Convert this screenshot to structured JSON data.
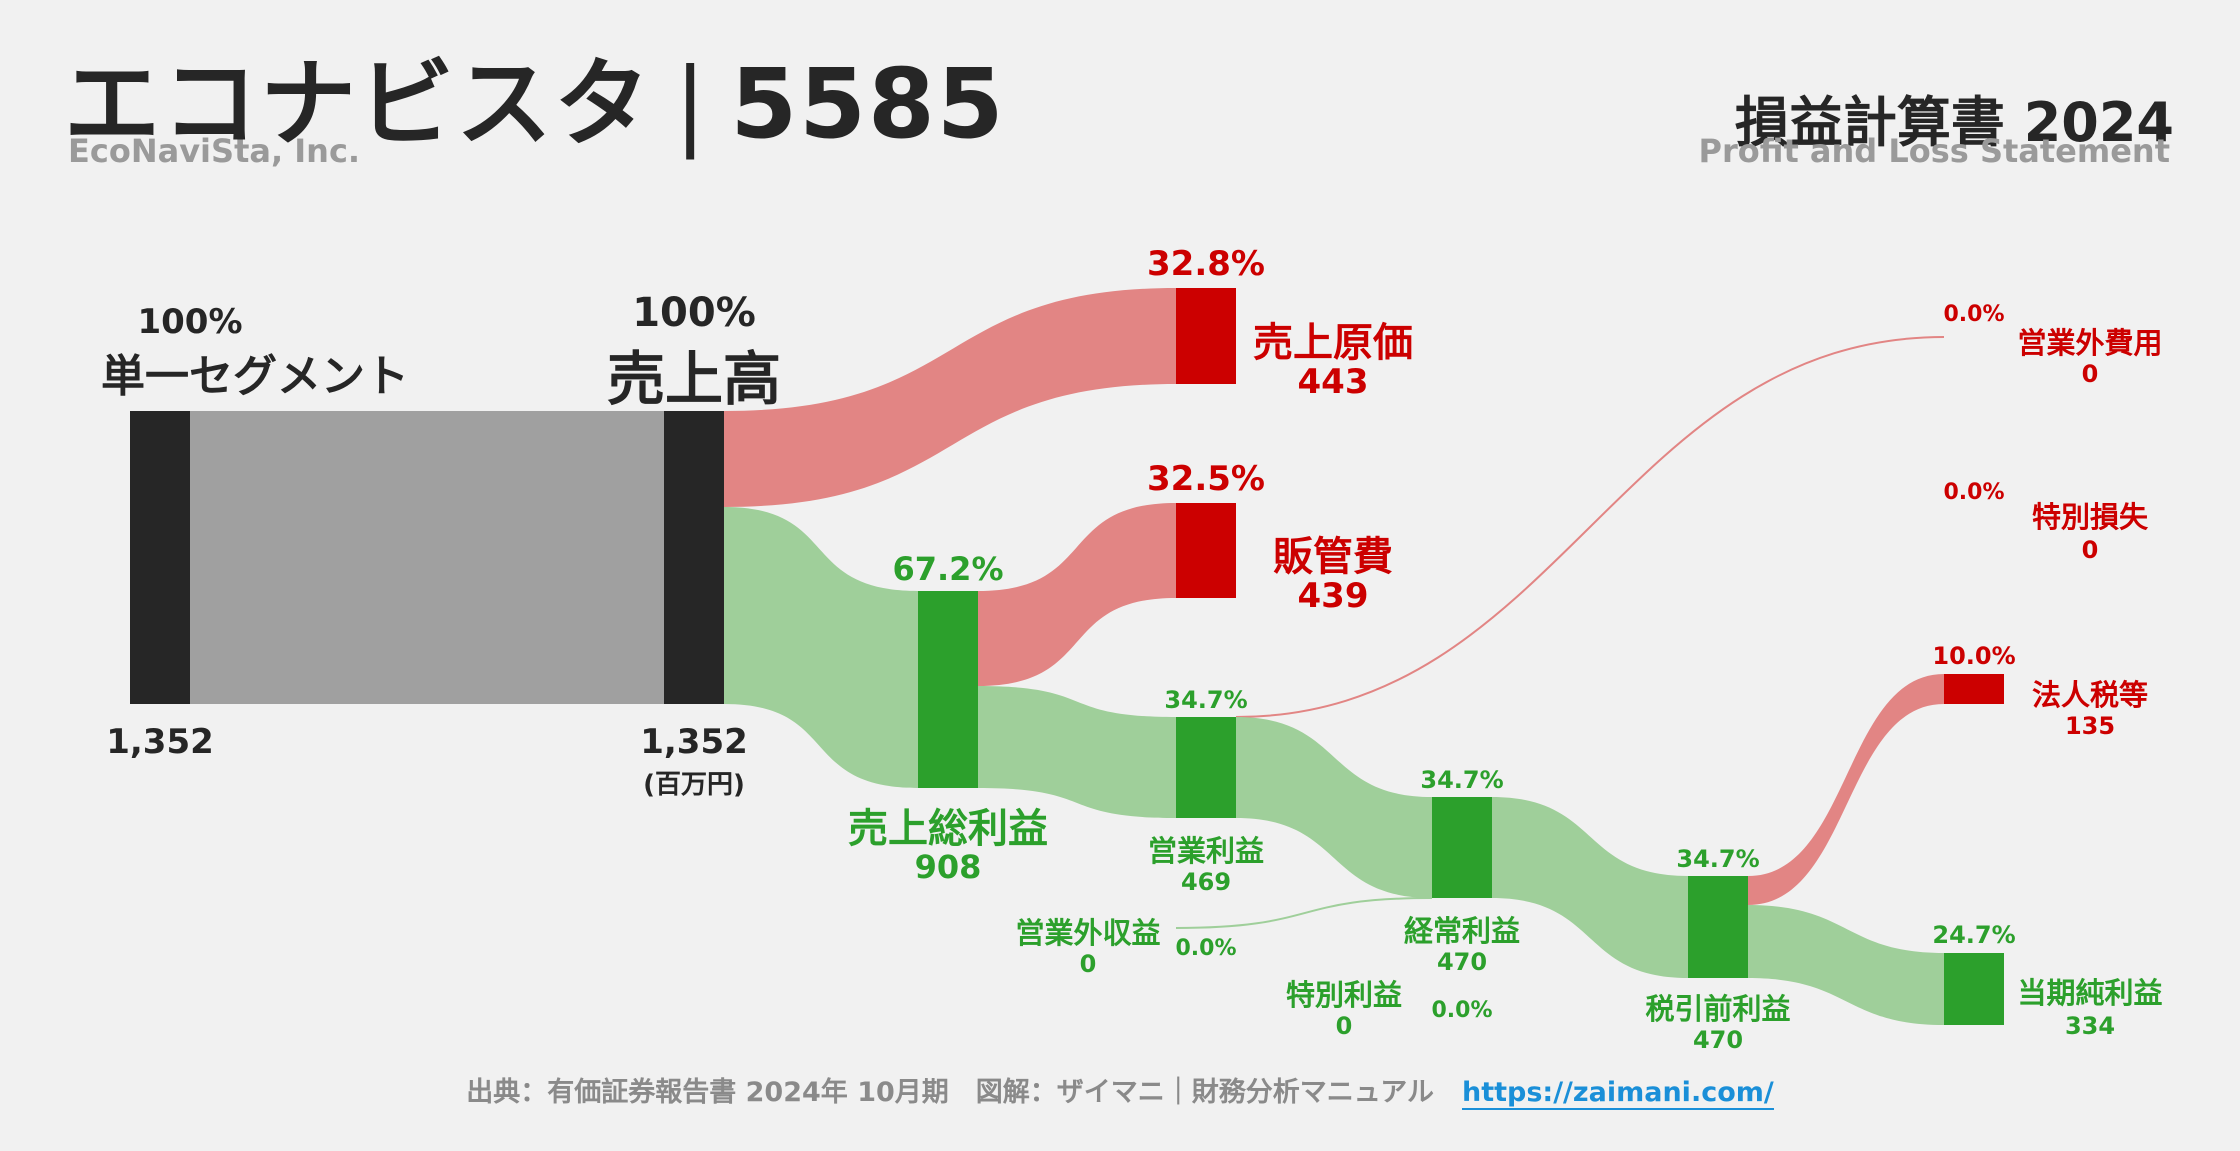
{
  "header": {
    "company": "エコナビスタ",
    "separator": "|",
    "code": "5585",
    "company_en": "EcoNaviSta, Inc.",
    "statement_title": "損益計算書 2024",
    "statement_en": "Profit and Loss Statement"
  },
  "unit": "(百万円)",
  "colors": {
    "dark_node": "#262626",
    "revenue_flow": "#a0a0a0",
    "cost_node": "#cc0000",
    "cost_flow": "#e28584",
    "profit_node": "#2ca02c",
    "profit_flow": "#9fcf9a"
  },
  "chart_data": {
    "type": "sankey",
    "nodes": {
      "segment": {
        "pct": "100%",
        "label": "単一セグメント",
        "value": "1,352"
      },
      "revenue": {
        "pct": "100%",
        "label": "売上高",
        "value": "1,352"
      },
      "cogs": {
        "pct": "32.8%",
        "label": "売上原価",
        "value": "443"
      },
      "sga": {
        "pct": "32.5%",
        "label": "販管費",
        "value": "439"
      },
      "gross_profit": {
        "pct": "67.2%",
        "label": "売上総利益",
        "value": "908"
      },
      "operating_profit": {
        "pct": "34.7%",
        "label": "営業利益",
        "value": "469"
      },
      "non_op_income": {
        "pct": "0.0%",
        "label": "営業外収益",
        "value": "0"
      },
      "non_op_expense": {
        "pct": "0.0%",
        "label": "営業外費用",
        "value": "0"
      },
      "ordinary_profit": {
        "pct": "34.7%",
        "label": "経常利益",
        "value": "470"
      },
      "special_gain": {
        "pct": "0.0%",
        "label": "特別利益",
        "value": "0"
      },
      "special_loss": {
        "pct": "0.0%",
        "label": "特別損失",
        "value": "0"
      },
      "pretax_profit": {
        "pct": "34.7%",
        "label": "税引前利益",
        "value": "470"
      },
      "tax": {
        "pct": "10.0%",
        "label": "法人税等",
        "value": "135"
      },
      "net_profit": {
        "pct": "24.7%",
        "label": "当期純利益",
        "value": "334"
      }
    },
    "links": [
      {
        "from": "segment",
        "to": "revenue",
        "value": 1352
      },
      {
        "from": "revenue",
        "to": "cogs",
        "value": 443
      },
      {
        "from": "revenue",
        "to": "gross_profit",
        "value": 908
      },
      {
        "from": "gross_profit",
        "to": "sga",
        "value": 439
      },
      {
        "from": "gross_profit",
        "to": "operating_profit",
        "value": 469
      },
      {
        "from": "operating_profit",
        "to": "non_op_expense",
        "value": 0
      },
      {
        "from": "non_op_income",
        "to": "ordinary_profit",
        "value": 0
      },
      {
        "from": "operating_profit",
        "to": "ordinary_profit",
        "value": 469
      },
      {
        "from": "ordinary_profit",
        "to": "pretax_profit",
        "value": 470
      },
      {
        "from": "pretax_profit",
        "to": "tax",
        "value": 135
      },
      {
        "from": "pretax_profit",
        "to": "net_profit",
        "value": 334
      }
    ]
  },
  "footer": {
    "source": "出典：有価証券報告書 2024年 10月期　図解：ザイマニ｜財務分析マニュアル",
    "url": "https://zaimani.com/"
  }
}
